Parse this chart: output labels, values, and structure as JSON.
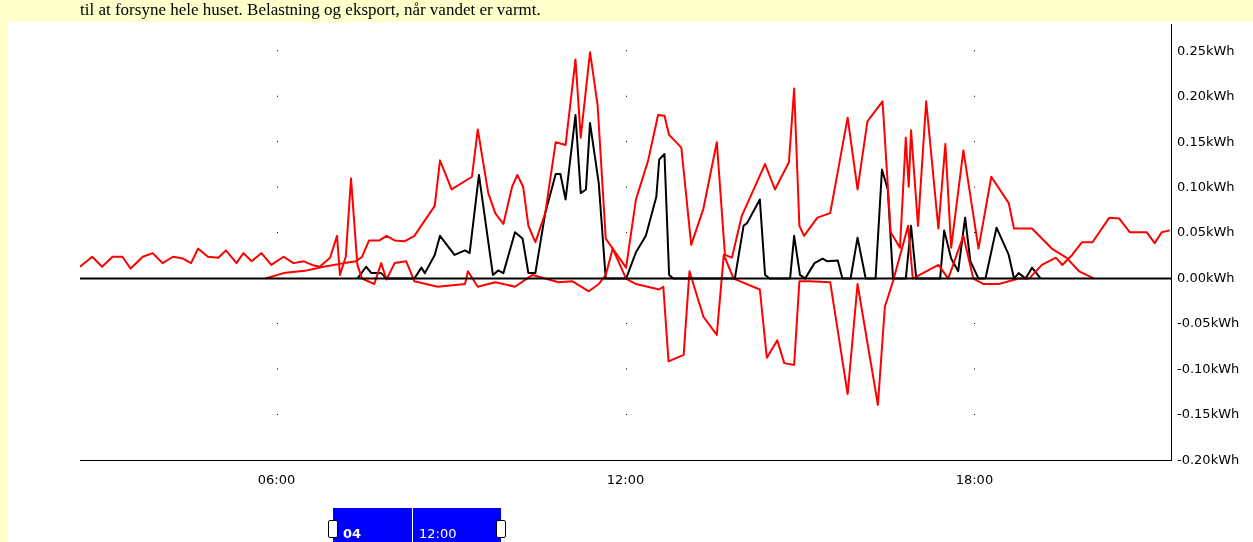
{
  "chart_data": {
    "type": "line",
    "annotations": [
      "til at forsyne hele huset. Belastning og eksport, når vandet er varmt.",
      "04",
      "12:00"
    ],
    "xlim": [
      2.62,
      21.38
    ],
    "xticks": [
      {
        "value": 6,
        "label": "06:00"
      },
      {
        "value": 12,
        "label": "12:00"
      },
      {
        "value": 18,
        "label": "18:00"
      }
    ],
    "ylim": [
      -0.2,
      0.28
    ],
    "yticks": [
      {
        "value": -0.2,
        "label": "-0.20kWh"
      },
      {
        "value": -0.15,
        "label": "-0.15kWh"
      },
      {
        "value": -0.1,
        "label": "-0.10kWh"
      },
      {
        "value": -0.05,
        "label": "-0.05kWh"
      },
      {
        "value": 0,
        "label": "0.00kWh"
      },
      {
        "value": 0.05,
        "label": "0.05kWh"
      },
      {
        "value": 0.1,
        "label": "0.10kWh"
      },
      {
        "value": 0.15,
        "label": "0.15kWh"
      },
      {
        "value": 0.2,
        "label": "0.20kWh"
      },
      {
        "value": 0.25,
        "label": "0.25kWh"
      }
    ],
    "grid": "x",
    "legend": false,
    "marker": "none",
    "line_style": "solid",
    "ref_lines": [
      {
        "axis": "y",
        "value": 0,
        "color": "#000000"
      }
    ],
    "series": [
      {
        "color": "#ff0000",
        "x": [
          2.62,
          2.83,
          3.0,
          3.18,
          3.35,
          3.49,
          3.7,
          3.87,
          4.04,
          4.22,
          4.39,
          4.53,
          4.65,
          4.82,
          5.0,
          5.13,
          5.31,
          5.43,
          5.57,
          5.74,
          5.91,
          6.12,
          6.29,
          6.47,
          6.61,
          6.74,
          6.92,
          7.04,
          7.09,
          7.19,
          7.28,
          7.39,
          7.47,
          7.68,
          7.8,
          7.89,
          8.03,
          8.23,
          8.37,
          8.77,
          9.24,
          9.29,
          9.46,
          9.76,
          10.1,
          10.4,
          10.85,
          11.09,
          11.37,
          11.54,
          11.66,
          11.78,
          12.01,
          12.18,
          12.58,
          12.65,
          12.74,
          13.0,
          13.1,
          13.34,
          13.57,
          13.69,
          13.86,
          14.31,
          14.43,
          14.61,
          14.73,
          14.9,
          14.99,
          15.16,
          15.52,
          15.82,
          15.99,
          16.34,
          16.46,
          16.6,
          16.86,
          16.94,
          17.38,
          17.55,
          17.81,
          17.98,
          18.16,
          18.42,
          18.76,
          18.94,
          19.16,
          19.4,
          19.51,
          19.68,
          19.85,
          20.03,
          20.32,
          20.49,
          20.67,
          20.96,
          21.1,
          21.22,
          21.36
        ],
        "values": [
          0.013,
          0.024,
          0.013,
          0.024,
          0.024,
          0.011,
          0.024,
          0.028,
          0.017,
          0.024,
          0.022,
          0.017,
          0.033,
          0.024,
          0.023,
          0.031,
          0.017,
          0.028,
          0.019,
          0.028,
          0.015,
          0.024,
          0.017,
          0.019,
          0.015,
          0.013,
          0.023,
          0.047,
          0.004,
          0.024,
          0.11,
          0.015,
          0,
          -0.006,
          0.017,
          -0.001,
          0.017,
          0.019,
          -0.003,
          -0.009,
          -0.006,
          0.008,
          -0.009,
          -0.004,
          -0.009,
          0.004,
          -0.004,
          -0.003,
          -0.014,
          -0.006,
          0.004,
          0.033,
          0,
          -0.006,
          -0.012,
          -0.009,
          -0.091,
          -0.084,
          0.008,
          -0.042,
          -0.062,
          0.026,
          0,
          -0.012,
          -0.087,
          -0.068,
          -0.093,
          -0.095,
          -0.003,
          -0.003,
          -0.004,
          -0.127,
          -0.006,
          -0.139,
          -0.031,
          -0.003,
          0.058,
          0,
          0.015,
          0,
          0.047,
          0,
          -0.006,
          -0.006,
          0,
          0,
          0.015,
          0.023,
          0.015,
          0.026,
          0.04,
          0.04,
          0.067,
          0.066,
          0.051,
          0.051,
          0.039,
          0.051,
          0.053
        ]
      },
      {
        "color": "#ff0000",
        "x": [
          5.81,
          6.12,
          6.52,
          6.81,
          7.16,
          7.37,
          7.47,
          7.59,
          7.77,
          7.89,
          8.03,
          8.2,
          8.37,
          8.55,
          8.72,
          8.81,
          9.01,
          9.36,
          9.46,
          9.64,
          9.76,
          9.9,
          10.05,
          10.14,
          10.24,
          10.33,
          10.45,
          10.62,
          10.8,
          10.97,
          11.14,
          11.23,
          11.39,
          11.52,
          11.66,
          12.01,
          12.18,
          12.39,
          12.56,
          12.67,
          12.75,
          12.96,
          13.13,
          13.34,
          13.57,
          13.71,
          13.83,
          14.0,
          14.4,
          14.57,
          14.81,
          14.9,
          14.99,
          15.07,
          15.3,
          15.52,
          15.82,
          15.99,
          16.16,
          16.42,
          16.56,
          16.72,
          16.82,
          16.87,
          16.91,
          17.03,
          17.17,
          17.38,
          17.5,
          17.6,
          17.81,
          18.07,
          18.29,
          18.59,
          18.68,
          18.99,
          19.33,
          19.58,
          19.8,
          20.06
        ],
        "values": [
          0,
          0.006,
          0.009,
          0.013,
          0.017,
          0.019,
          0.024,
          0.042,
          0.042,
          0.047,
          0.042,
          0.041,
          0.047,
          0.064,
          0.08,
          0.13,
          0.098,
          0.112,
          0.164,
          0.094,
          0.072,
          0.06,
          0.101,
          0.114,
          0.101,
          0.058,
          0.04,
          0.072,
          0.15,
          0.147,
          0.241,
          0.155,
          0.249,
          0.191,
          0.044,
          0.012,
          0.087,
          0.13,
          0.18,
          0.179,
          0.158,
          0.144,
          0.037,
          0.077,
          0.15,
          0.026,
          0.023,
          0.069,
          0.126,
          0.098,
          0.128,
          0.209,
          0.058,
          0.047,
          0.067,
          0.072,
          0.177,
          0.098,
          0.173,
          0.195,
          0.051,
          0.034,
          0.155,
          0.101,
          0.163,
          0.058,
          0.195,
          0.055,
          0.148,
          0.034,
          0.141,
          0.033,
          0.112,
          0.083,
          0.055,
          0.055,
          0.033,
          0.023,
          0.008,
          0
        ]
      },
      {
        "color": "#000000",
        "x": [
          7.39,
          7.54,
          7.63,
          7.8,
          7.89,
          8.37,
          8.49,
          8.55,
          8.72,
          8.81,
          9.06,
          9.24,
          9.32,
          9.48,
          9.72,
          9.81,
          9.9,
          10.1,
          10.23,
          10.33,
          10.45,
          10.62,
          10.8,
          10.88,
          10.97,
          11.14,
          11.23,
          11.32,
          11.39,
          11.54,
          11.66,
          12.01,
          12.18,
          12.35,
          12.53,
          12.58,
          12.67,
          12.75,
          12.82,
          13.88,
          14.03,
          14.09,
          14.31,
          14.4,
          14.48,
          14.83,
          14.9,
          15.0,
          15.09,
          15.25,
          15.39,
          15.47,
          15.65,
          15.73,
          15.87,
          15.99,
          16.13,
          16.3,
          16.41,
          16.51,
          16.6,
          16.82,
          16.91,
          17.0,
          17.41,
          17.48,
          17.6,
          17.72,
          17.84,
          17.93,
          18.07,
          18.19,
          18.38,
          18.59,
          18.68,
          18.76,
          18.88,
          18.99,
          19.14
        ],
        "values": [
          0,
          0.013,
          0.006,
          0.006,
          0,
          0,
          0.012,
          0.006,
          0.026,
          0.047,
          0.026,
          0.031,
          0.028,
          0.114,
          0.004,
          0.009,
          0.006,
          0.051,
          0.044,
          0.006,
          0.006,
          0.072,
          0.115,
          0.115,
          0.087,
          0.18,
          0.094,
          0.098,
          0.171,
          0.105,
          0,
          0,
          0.029,
          0.047,
          0.09,
          0.131,
          0.137,
          0.004,
          0,
          0,
          0.058,
          0.061,
          0.087,
          0.004,
          0,
          0,
          0.047,
          0.004,
          0,
          0.017,
          0.022,
          0.019,
          0.02,
          0,
          0,
          0.045,
          0,
          0,
          0.12,
          0.098,
          0,
          0,
          0.058,
          0,
          0,
          0.053,
          0.022,
          0.008,
          0.067,
          0.019,
          0,
          0,
          0.056,
          0.026,
          0,
          0.006,
          0,
          0.012,
          0
        ]
      }
    ]
  }
}
